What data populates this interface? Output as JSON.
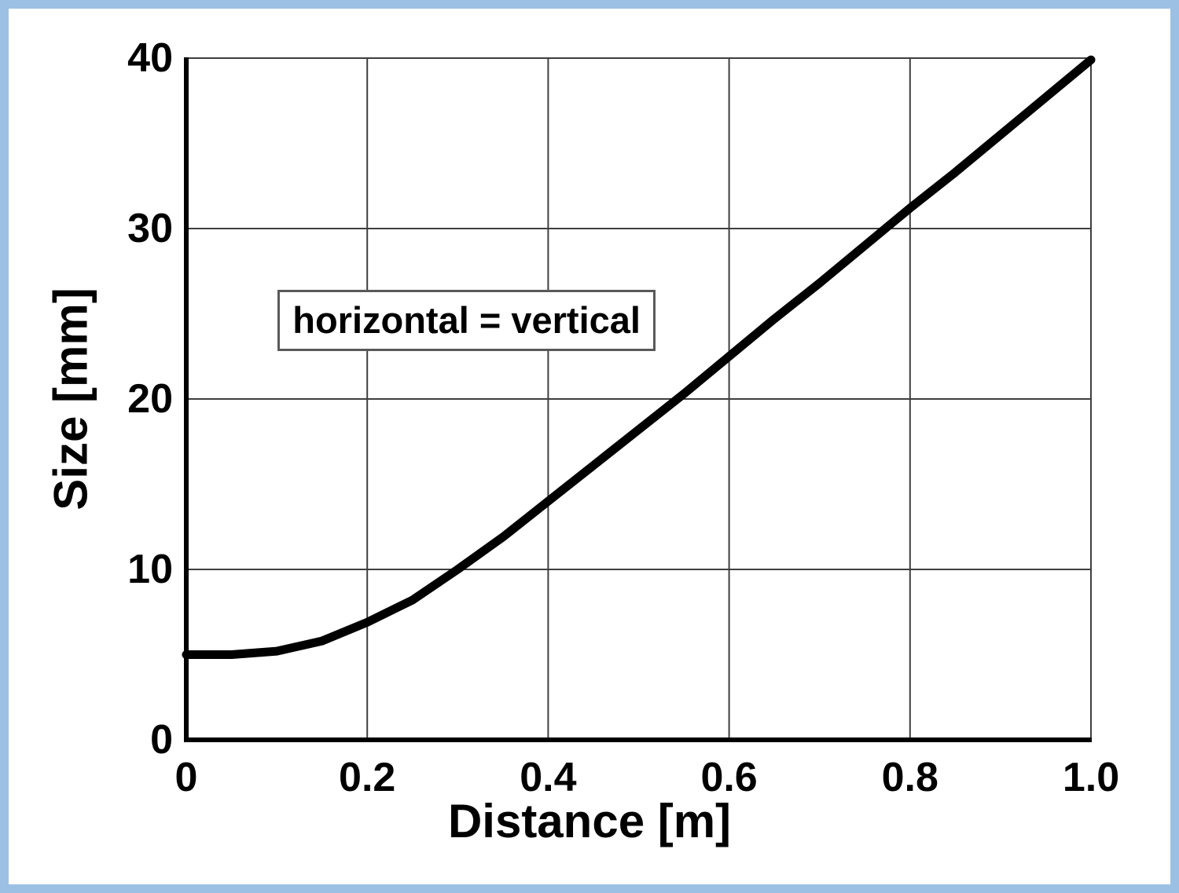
{
  "style": {
    "background": "#FFFFFF",
    "frame_border_color": "#9BC0E4",
    "grid_color": "#3F3F3F",
    "axis_color": "#000000",
    "curve_color": "#000000",
    "annotation_border_color": "#595959",
    "annotation_background": "#FFFFFF",
    "text_color": "#000000"
  },
  "chart_data": {
    "type": "line",
    "title": "",
    "xlabel": "Distance [m]",
    "ylabel": "Size [mm]",
    "xlim": [
      0,
      1.0
    ],
    "ylim": [
      0,
      40
    ],
    "grid": true,
    "legend_position": "none",
    "xticks": {
      "values": [
        0,
        0.2,
        0.4,
        0.6,
        0.8,
        1.0
      ],
      "labels": [
        "0",
        "0.2",
        "0.4",
        "0.6",
        "0.8",
        "1.0"
      ]
    },
    "yticks": {
      "values": [
        0,
        10,
        20,
        30,
        40
      ],
      "labels": [
        "0",
        "10",
        "20",
        "30",
        "40"
      ]
    },
    "annotation": {
      "text": "horizontal = vertical",
      "x": 0.101,
      "y": 26.4
    },
    "series": [
      {
        "name": "cell size vs distance",
        "x": [
          0,
          0.05,
          0.1,
          0.15,
          0.2,
          0.25,
          0.3,
          0.35,
          0.4,
          0.45,
          0.5,
          0.55,
          0.6,
          0.65,
          0.7,
          0.75,
          0.8,
          0.85,
          0.9,
          0.95,
          1.0
        ],
        "y": [
          5.0,
          5.0,
          5.2,
          5.8,
          6.9,
          8.2,
          10.0,
          11.9,
          14.0,
          16.1,
          18.2,
          20.3,
          22.5,
          24.7,
          26.8,
          29.0,
          31.2,
          33.3,
          35.5,
          37.7,
          39.9
        ],
        "line_width": 11
      }
    ]
  }
}
